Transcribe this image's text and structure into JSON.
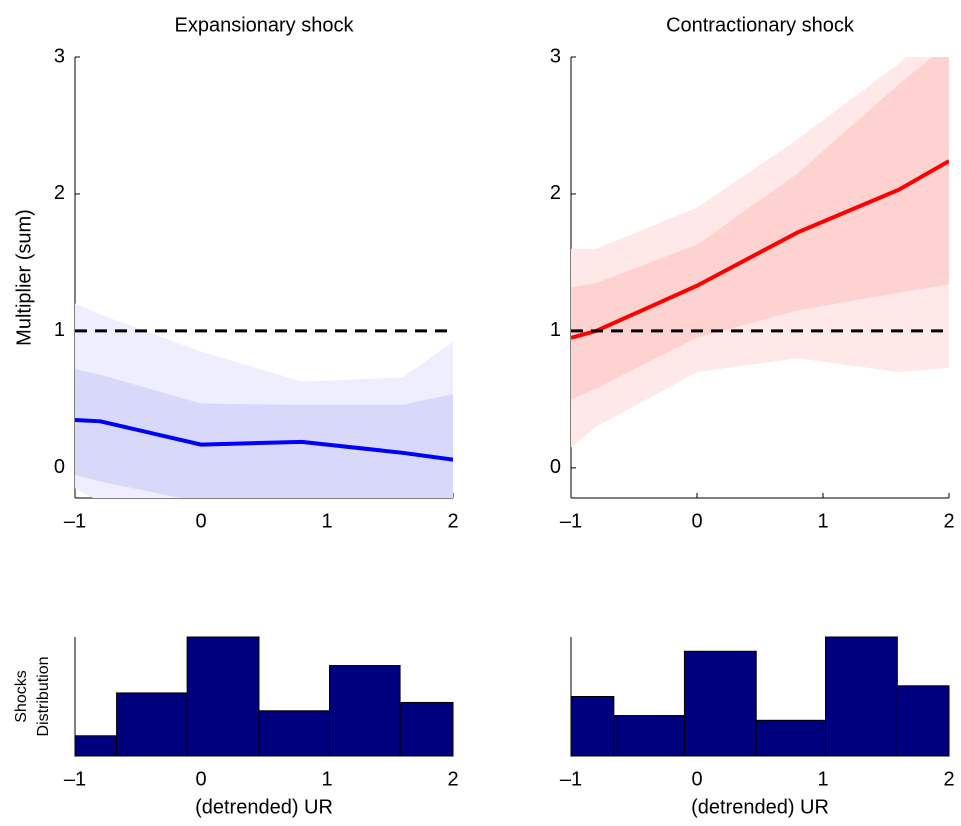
{
  "chart_data": [
    {
      "type": "line",
      "title": "Expansionary shock",
      "ylabel": "Multiplier (sum)",
      "xlim": [
        -1,
        2
      ],
      "ylim": [
        -0.22,
        3
      ],
      "xticks": [
        {
          "value": -1,
          "label": "–1"
        },
        0,
        1,
        2
      ],
      "yticks": [
        0,
        1,
        2,
        3
      ],
      "x": [
        -1,
        -0.8,
        0,
        0.8,
        1.6,
        2
      ],
      "series": [
        {
          "color": "#0000ff",
          "values": [
            0.35,
            0.34,
            0.17,
            0.19,
            0.11,
            0.06
          ]
        }
      ],
      "bands": [
        {
          "color": "#eeeeff",
          "upper": [
            1.2,
            1.12,
            0.85,
            0.63,
            0.66,
            0.92
          ],
          "lower": [
            -0.15,
            -0.25,
            -0.3,
            -0.3,
            -0.3,
            -0.3
          ]
        },
        {
          "color": "#d8d8fb",
          "upper": [
            0.72,
            0.68,
            0.47,
            0.46,
            0.46,
            0.54
          ],
          "lower": [
            -0.05,
            -0.1,
            -0.25,
            -0.3,
            -0.3,
            -0.3
          ]
        }
      ],
      "hline": 1
    },
    {
      "type": "line",
      "title": "Contractionary shock",
      "xlim": [
        -1,
        2
      ],
      "ylim": [
        -0.22,
        3
      ],
      "xticks": [
        {
          "value": -1,
          "label": "–1"
        },
        0,
        1,
        2
      ],
      "yticks": [
        0,
        1,
        2,
        3
      ],
      "x": [
        -1,
        -0.8,
        0,
        0.8,
        1.6,
        2
      ],
      "series": [
        {
          "color": "#ff0000",
          "values": [
            0.95,
            1.0,
            1.33,
            1.72,
            2.03,
            2.24
          ]
        }
      ],
      "bands": [
        {
          "color": "#ffe8e8",
          "upper": [
            1.6,
            1.6,
            1.9,
            2.4,
            2.95,
            3.3
          ],
          "lower": [
            0.15,
            0.3,
            0.7,
            0.8,
            0.7,
            0.73
          ]
        },
        {
          "color": "#ffd2d2",
          "upper": [
            1.32,
            1.35,
            1.63,
            2.15,
            2.8,
            3.1
          ],
          "lower": [
            0.5,
            0.58,
            0.95,
            1.15,
            1.28,
            1.34
          ]
        }
      ],
      "hline": 1
    },
    {
      "type": "histogram",
      "ylabel": [
        "Shocks",
        "Distribution"
      ],
      "xlabel": "(detrended) UR",
      "xlim": [
        -1,
        2
      ],
      "ylim": [
        0,
        1
      ],
      "xticks": [
        {
          "value": -1,
          "label": "–1"
        },
        0,
        1,
        2
      ],
      "bins": [
        -1,
        -0.67,
        -0.11,
        0.46,
        1.02,
        1.58,
        2
      ],
      "values": [
        0.17,
        0.53,
        1.0,
        0.38,
        0.76,
        0.45
      ],
      "color": "#00007f"
    },
    {
      "type": "histogram",
      "xlabel": "(detrended) UR",
      "xlim": [
        -1,
        2
      ],
      "ylim": [
        0,
        1
      ],
      "xticks": [
        {
          "value": -1,
          "label": "–1"
        },
        0,
        1,
        2
      ],
      "bins": [
        -1,
        -0.66,
        -0.1,
        0.47,
        1.02,
        1.59,
        2
      ],
      "values": [
        0.5,
        0.34,
        0.88,
        0.3,
        1.0,
        0.59
      ],
      "color": "#00007f"
    }
  ]
}
